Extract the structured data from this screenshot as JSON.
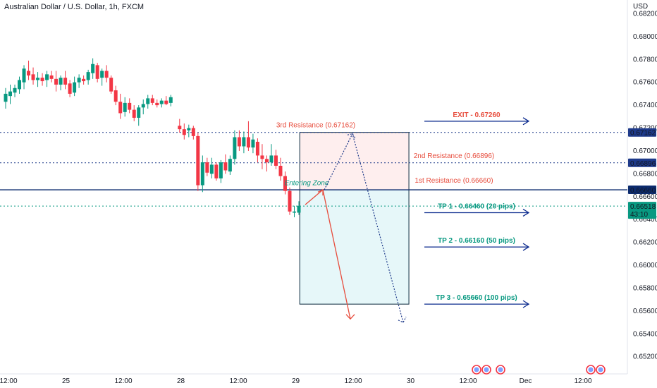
{
  "header": {
    "title": "Australian Dollar / U.S. Dollar, 1h, FXCM"
  },
  "chart_data": {
    "type": "candlestick",
    "currency": "USD",
    "y_ticks": [
      "0.68200",
      "0.68000",
      "0.67800",
      "0.67600",
      "0.67400",
      "0.67200",
      "0.67000",
      "0.66800",
      "0.66600",
      "0.66400",
      "0.66200",
      "0.66000",
      "0.65800",
      "0.65600",
      "0.65400",
      "0.65200"
    ],
    "x_ticks": [
      {
        "label": "12:00",
        "pos": 0.0
      },
      {
        "label": "25",
        "pos": 1.0
      },
      {
        "label": "12:00",
        "pos": 2.0
      },
      {
        "label": "28",
        "pos": 3.0
      },
      {
        "label": "12:00",
        "pos": 4.0
      },
      {
        "label": "29",
        "pos": 5.0
      },
      {
        "label": "12:00",
        "pos": 6.0
      },
      {
        "label": "30",
        "pos": 7.0
      },
      {
        "label": "12:00",
        "pos": 8.0
      },
      {
        "label": "Dec",
        "pos": 9.0
      },
      {
        "label": "12:00",
        "pos": 10.0
      }
    ],
    "ylim": [
      0.6505,
      0.6832
    ],
    "price_tags": [
      {
        "value": 0.67162,
        "label": "0.67162",
        "color": "#1e3a8a"
      },
      {
        "value": 0.66896,
        "label": "0.66896",
        "color": "#1e3a8a"
      },
      {
        "value": 0.6666,
        "label": "0.66660",
        "color": "#0c2b6e"
      },
      {
        "value": 0.66518,
        "label": "0.66518",
        "sublabel": "43:10",
        "color": "#089981"
      }
    ],
    "levels": [
      {
        "name": "3rd Resistance (0.67162)",
        "value": 0.67162,
        "style": "dotted",
        "color": "#1e3a8a"
      },
      {
        "name": "2nd Resistance (0.66896)",
        "value": 0.66896,
        "style": "dotted",
        "color": "#1e3a8a"
      },
      {
        "name": "1st Resistance (0.66660)",
        "value": 0.6666,
        "style": "solid",
        "color": "#0c2b6e"
      },
      {
        "name": "current",
        "value": 0.66518,
        "style": "dotted",
        "color": "#089981"
      }
    ],
    "annotations": {
      "exit": {
        "label": "EXIT - 0.67260",
        "value": 0.6726,
        "color": "#e74c3c"
      },
      "tps": [
        {
          "label": "TP 1 - 0.66460 (20 pips)",
          "value": 0.6646,
          "color": "#089981"
        },
        {
          "label": "TP 2 - 0.66160 (50 pips)",
          "value": 0.6616,
          "color": "#089981"
        },
        {
          "label": "TP 3 - 0.65660 (100 pips)",
          "value": 0.6566,
          "color": "#089981"
        }
      ],
      "entering_zone": {
        "label": "Entering Zone",
        "color": "#089981"
      },
      "zone_box": {
        "start": 5.07,
        "end": 6.97,
        "top": 0.67162,
        "mid": 0.6666,
        "bottom": 0.6566
      }
    },
    "candles": [
      [
        0.6743,
        0.6755,
        0.6737,
        0.675
      ],
      [
        0.6748,
        0.6758,
        0.6741,
        0.6752
      ],
      [
        0.6751,
        0.6758,
        0.6747,
        0.6755
      ],
      [
        0.6754,
        0.6765,
        0.675,
        0.6762
      ],
      [
        0.676,
        0.6775,
        0.6754,
        0.6772
      ],
      [
        0.677,
        0.6779,
        0.6762,
        0.6766
      ],
      [
        0.6767,
        0.6773,
        0.6758,
        0.6762
      ],
      [
        0.6762,
        0.6769,
        0.6756,
        0.6764
      ],
      [
        0.6764,
        0.6768,
        0.6757,
        0.6761
      ],
      [
        0.6762,
        0.677,
        0.6756,
        0.6767
      ],
      [
        0.6766,
        0.677,
        0.676,
        0.6763
      ],
      [
        0.6763,
        0.677,
        0.6752,
        0.6758
      ],
      [
        0.6758,
        0.6766,
        0.6753,
        0.6764
      ],
      [
        0.6764,
        0.677,
        0.6754,
        0.6758
      ],
      [
        0.6759,
        0.6762,
        0.6747,
        0.675
      ],
      [
        0.6751,
        0.6765,
        0.6748,
        0.676
      ],
      [
        0.676,
        0.6767,
        0.6755,
        0.6764
      ],
      [
        0.6763,
        0.6766,
        0.6758,
        0.6761
      ],
      [
        0.6762,
        0.6771,
        0.6758,
        0.6769
      ],
      [
        0.6768,
        0.6781,
        0.6763,
        0.6776
      ],
      [
        0.6775,
        0.6777,
        0.676,
        0.6763
      ],
      [
        0.6764,
        0.6772,
        0.6757,
        0.677
      ],
      [
        0.677,
        0.6775,
        0.676,
        0.6764
      ],
      [
        0.6764,
        0.6766,
        0.675,
        0.6752
      ],
      [
        0.6753,
        0.6757,
        0.674,
        0.6743
      ],
      [
        0.6743,
        0.675,
        0.6728,
        0.6733
      ],
      [
        0.6734,
        0.6747,
        0.673,
        0.6742
      ],
      [
        0.6742,
        0.6746,
        0.6733,
        0.6736
      ],
      [
        0.6736,
        0.674,
        0.6726,
        0.6729
      ],
      [
        0.6729,
        0.674,
        0.6722,
        0.6738
      ],
      [
        0.6738,
        0.6745,
        0.6732,
        0.6741
      ],
      [
        0.6741,
        0.6749,
        0.6737,
        0.6746
      ],
      [
        0.6746,
        0.6749,
        0.674,
        0.6742
      ],
      [
        0.6742,
        0.6745,
        0.6738,
        0.674
      ],
      [
        0.6741,
        0.6746,
        0.6738,
        0.6744
      ],
      [
        0.6744,
        0.6748,
        0.674,
        0.6741
      ],
      [
        0.6742,
        0.6749,
        0.6739,
        0.6747
      ],
      [
        0.6722,
        0.6728,
        0.6716,
        0.6719
      ],
      [
        0.6719,
        0.6724,
        0.671,
        0.6714
      ],
      [
        0.6718,
        0.6723,
        0.6712,
        0.672
      ],
      [
        0.672,
        0.6722,
        0.671,
        0.6713
      ],
      [
        0.6713,
        0.6716,
        0.6665,
        0.667
      ],
      [
        0.667,
        0.6696,
        0.6664,
        0.669
      ],
      [
        0.669,
        0.6694,
        0.6678,
        0.6681
      ],
      [
        0.668,
        0.6694,
        0.6676,
        0.6688
      ],
      [
        0.6688,
        0.669,
        0.6674,
        0.6676
      ],
      [
        0.6676,
        0.6692,
        0.6672,
        0.669
      ],
      [
        0.669,
        0.6697,
        0.668,
        0.6683
      ],
      [
        0.6682,
        0.6696,
        0.6679,
        0.6693
      ],
      [
        0.6693,
        0.6718,
        0.6688,
        0.6712
      ],
      [
        0.6712,
        0.6718,
        0.67,
        0.6704
      ],
      [
        0.6704,
        0.6717,
        0.6698,
        0.6712
      ],
      [
        0.6712,
        0.6726,
        0.67,
        0.6703
      ],
      [
        0.6703,
        0.6715,
        0.6698,
        0.671
      ],
      [
        0.6708,
        0.6711,
        0.669,
        0.6696
      ],
      [
        0.6696,
        0.6706,
        0.6684,
        0.6693
      ],
      [
        0.6693,
        0.6696,
        0.6682,
        0.669
      ],
      [
        0.669,
        0.6706,
        0.6687,
        0.6696
      ],
      [
        0.6696,
        0.6701,
        0.6684,
        0.6687
      ],
      [
        0.6687,
        0.6694,
        0.6674,
        0.6678
      ],
      [
        0.6678,
        0.6682,
        0.6662,
        0.6665
      ],
      [
        0.6665,
        0.6668,
        0.6644,
        0.6647
      ],
      [
        0.6646,
        0.6652,
        0.6642,
        0.6647
      ],
      [
        0.6646,
        0.6656,
        0.6644,
        0.6652
      ]
    ]
  }
}
